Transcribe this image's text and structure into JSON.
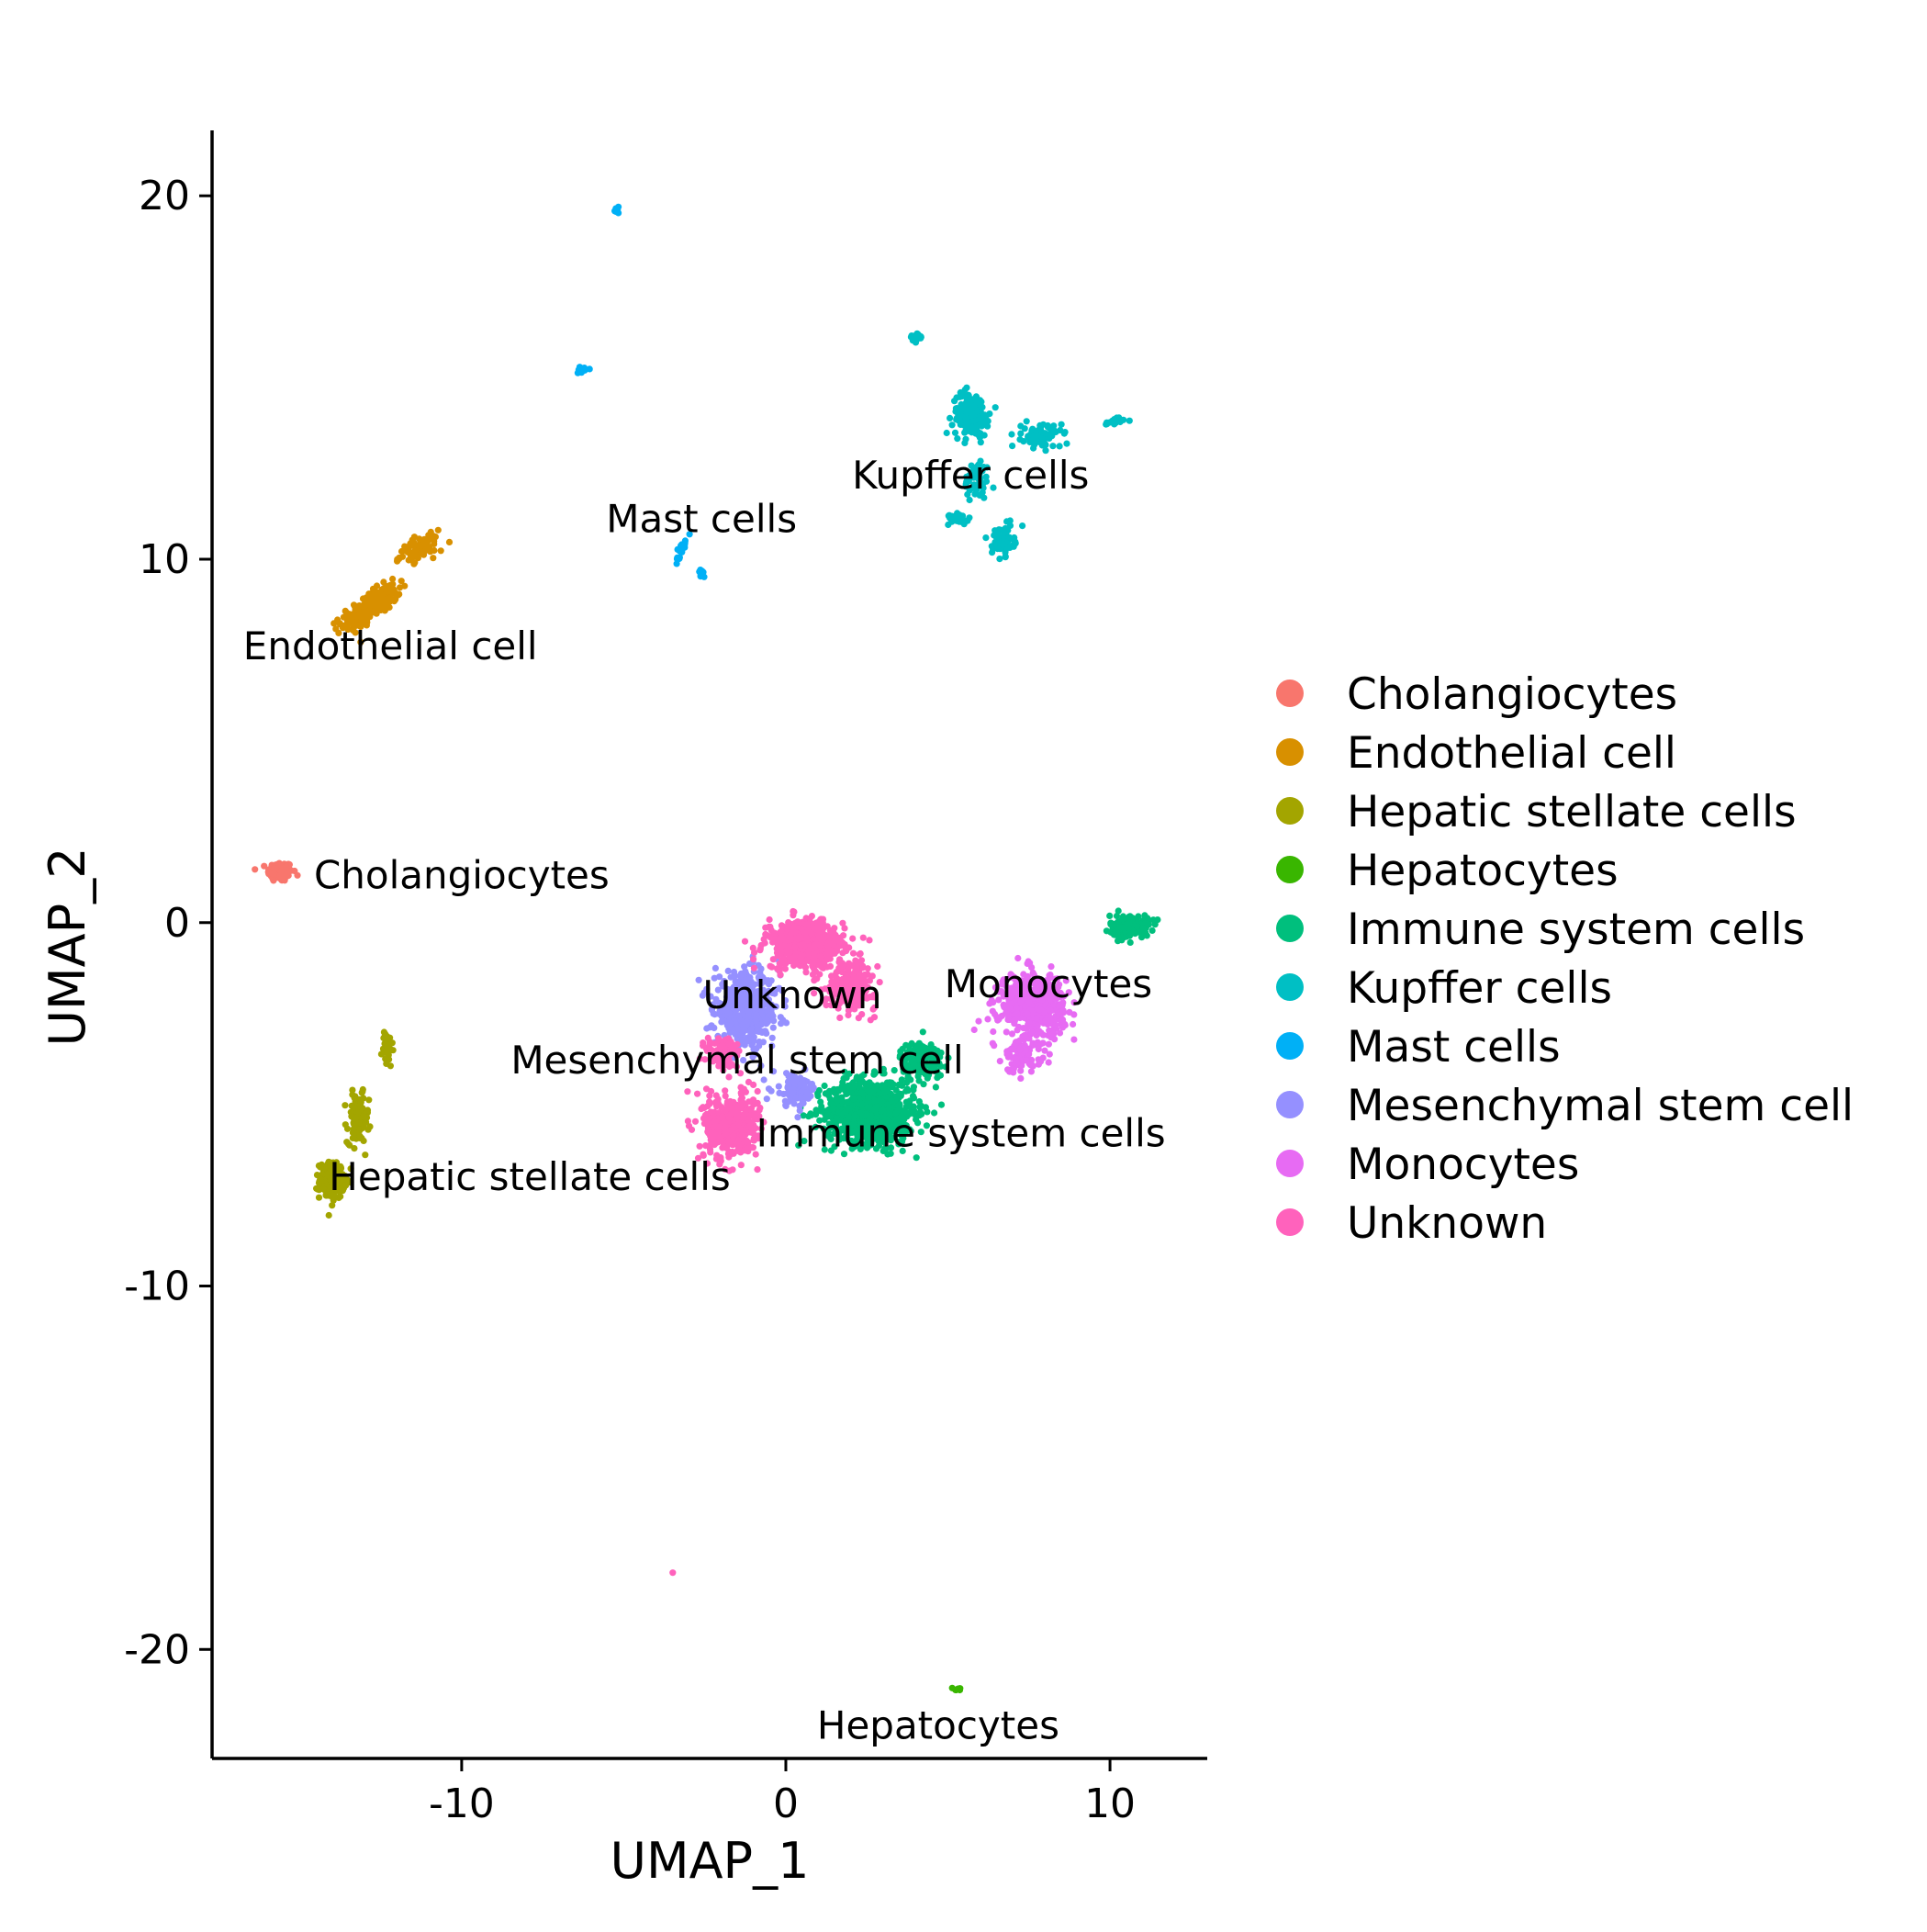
{
  "chart_data": {
    "type": "scatter",
    "xlabel": "UMAP_1",
    "ylabel": "UMAP_2",
    "xlim": [
      -17.7,
      13.0
    ],
    "ylim": [
      -23.0,
      21.8
    ],
    "x_ticks": [
      {
        "value": -10,
        "label": "-10"
      },
      {
        "value": 0,
        "label": "0"
      },
      {
        "value": 10,
        "label": "10"
      }
    ],
    "y_ticks": [
      {
        "value": 20,
        "label": "20"
      },
      {
        "value": 10,
        "label": "10"
      },
      {
        "value": 0,
        "label": "0"
      },
      {
        "value": -10,
        "label": "-10"
      },
      {
        "value": -20,
        "label": "-20"
      }
    ],
    "grid": false,
    "legend": "right",
    "series": [
      {
        "name": "Cholangiocytes",
        "color": "#F8766D",
        "label": "Cholangiocytes",
        "label_at": [
          -10.0,
          1.3
        ],
        "clusters": [
          {
            "center": [
              -15.6,
              1.4
            ],
            "spread": [
              0.35,
              0.25
            ],
            "n": 120
          }
        ]
      },
      {
        "name": "Endothelial cell",
        "color": "#D89000",
        "label": "Endothelial cell",
        "label_at": [
          -12.2,
          7.6
        ],
        "clusters": [
          {
            "center": [
              -12.8,
              8.7
            ],
            "spread": [
              0.9,
              0.3
            ],
            "n": 260,
            "angle": 30
          },
          {
            "center": [
              -11.3,
              10.3
            ],
            "spread": [
              0.6,
              0.25
            ],
            "n": 90,
            "angle": 20
          }
        ]
      },
      {
        "name": "Hepatic stellate cells",
        "color": "#A3A500",
        "label": "Hepatic stellate cells",
        "label_at": [
          -7.9,
          -7.0
        ],
        "clusters": [
          {
            "center": [
              -14.0,
              -7.1
            ],
            "spread": [
              0.35,
              0.45
            ],
            "n": 200
          },
          {
            "center": [
              -13.2,
              -5.4
            ],
            "spread": [
              0.3,
              0.6
            ],
            "n": 120
          },
          {
            "center": [
              -12.3,
              -3.5
            ],
            "spread": [
              0.15,
              0.5
            ],
            "n": 35
          }
        ]
      },
      {
        "name": "Hepatocytes",
        "color": "#39B600",
        "label": "Hepatocytes",
        "label_at": [
          4.7,
          -22.1
        ],
        "clusters": [
          {
            "center": [
              5.3,
              -21.1
            ],
            "spread": [
              0.12,
              0.07
            ],
            "n": 10
          }
        ]
      },
      {
        "name": "Immune system cells",
        "color": "#00BF7D",
        "label": "Immune system cells",
        "label_at": [
          5.4,
          -5.8
        ],
        "clusters": [
          {
            "center": [
              2.6,
              -5.2
            ],
            "spread": [
              1.25,
              0.8
            ],
            "n": 900
          },
          {
            "center": [
              4.2,
              -3.8
            ],
            "spread": [
              0.6,
              0.5
            ],
            "n": 160
          },
          {
            "center": [
              10.6,
              -0.1
            ],
            "spread": [
              0.55,
              0.28
            ],
            "n": 160
          }
        ]
      },
      {
        "name": "Kupffer cells",
        "color": "#00BFC4",
        "label": "Kupffer cells",
        "label_at": [
          5.7,
          12.3
        ],
        "clusters": [
          {
            "center": [
              5.7,
              14.0
            ],
            "spread": [
              0.5,
              0.55
            ],
            "n": 170
          },
          {
            "center": [
              5.9,
              12.2
            ],
            "spread": [
              0.35,
              0.5
            ],
            "n": 60
          },
          {
            "center": [
              6.7,
              10.5
            ],
            "spread": [
              0.3,
              0.35
            ],
            "n": 80
          },
          {
            "center": [
              5.2,
              11.1
            ],
            "spread": [
              0.5,
              0.15
            ],
            "n": 35
          },
          {
            "center": [
              7.9,
              13.4
            ],
            "spread": [
              0.55,
              0.3
            ],
            "n": 75
          },
          {
            "center": [
              10.1,
              13.8
            ],
            "spread": [
              0.3,
              0.1
            ],
            "n": 22
          },
          {
            "center": [
              4.0,
              16.1
            ],
            "spread": [
              0.18,
              0.1
            ],
            "n": 22
          }
        ]
      },
      {
        "name": "Mast cells",
        "color": "#00B0F6",
        "label": "Mast cells",
        "label_at": [
          -2.6,
          11.1
        ],
        "clusters": [
          {
            "center": [
              -5.2,
              19.6
            ],
            "spread": [
              0.1,
              0.08
            ],
            "n": 12
          },
          {
            "center": [
              -6.3,
              15.2
            ],
            "spread": [
              0.2,
              0.08
            ],
            "n": 18
          },
          {
            "center": [
              -3.2,
              10.3
            ],
            "spread": [
              0.08,
              0.4
            ],
            "n": 22,
            "angle": -25
          },
          {
            "center": [
              -2.6,
              9.6
            ],
            "spread": [
              0.08,
              0.15
            ],
            "n": 8
          }
        ]
      },
      {
        "name": "Mesenchymal stem cell",
        "color": "#9590FF",
        "label": "Mesenchymal stem cell",
        "label_at": [
          -1.5,
          -3.8
        ],
        "clusters": [
          {
            "center": [
              -1.2,
              -2.4
            ],
            "spread": [
              0.9,
              0.9
            ],
            "n": 520
          },
          {
            "center": [
              0.3,
              -4.6
            ],
            "spread": [
              0.6,
              0.4
            ],
            "n": 90
          }
        ]
      },
      {
        "name": "Monocytes",
        "color": "#E76BF3",
        "label": "Monocytes",
        "label_at": [
          8.1,
          -1.7
        ],
        "clusters": [
          {
            "center": [
              7.6,
              -2.3
            ],
            "spread": [
              0.9,
              0.8
            ],
            "n": 480
          },
          {
            "center": [
              7.3,
              -3.7
            ],
            "spread": [
              0.5,
              0.4
            ],
            "n": 90
          }
        ]
      },
      {
        "name": "Unknown",
        "color": "#FF62BC",
        "label": "Unknown",
        "label_at": [
          0.2,
          -2.0
        ],
        "clusters": [
          {
            "center": [
              0.6,
              -0.6
            ],
            "spread": [
              1.1,
              0.6
            ],
            "n": 480
          },
          {
            "center": [
              2.0,
              -1.7
            ],
            "spread": [
              0.7,
              0.6
            ],
            "n": 220
          },
          {
            "center": [
              -1.7,
              -5.6
            ],
            "spread": [
              0.75,
              0.8
            ],
            "n": 450
          },
          {
            "center": [
              -1.9,
              -3.6
            ],
            "spread": [
              0.5,
              0.5
            ],
            "n": 80
          },
          {
            "center": [
              -3.5,
              -17.9
            ],
            "spread": [
              0.04,
              0.04
            ],
            "n": 1
          }
        ]
      }
    ]
  }
}
